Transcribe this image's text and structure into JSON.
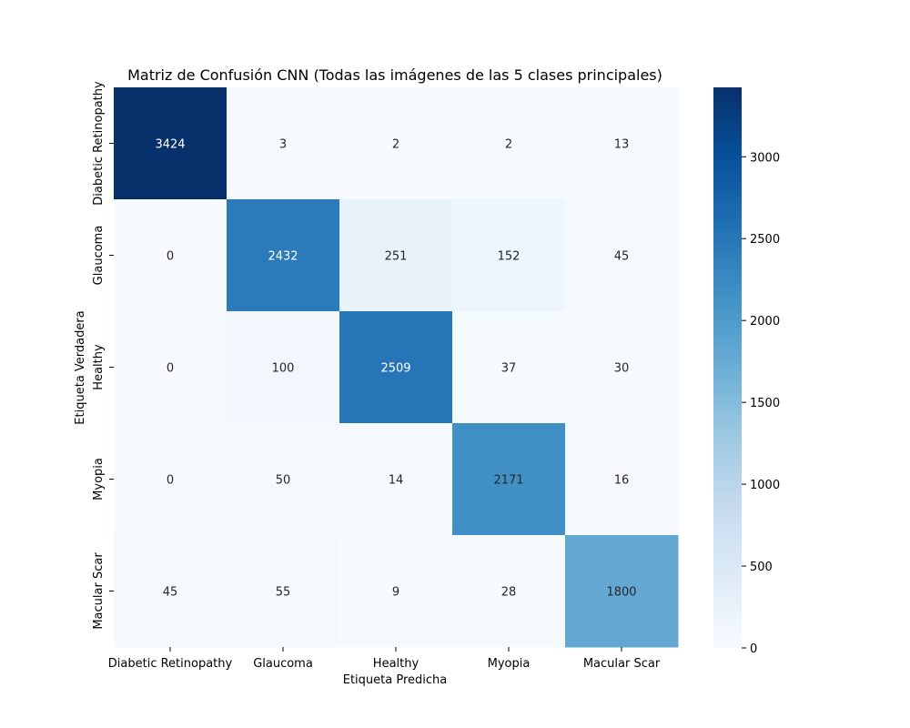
{
  "chart_data": {
    "type": "heatmap",
    "title": "Matriz de Confusión CNN (Todas las imágenes de las 5 clases principales)",
    "xlabel": "Etiqueta Predicha",
    "ylabel": "Etiqueta Verdadera",
    "x_categories": [
      "Diabetic Retinopathy",
      "Glaucoma",
      "Healthy",
      "Myopia",
      "Macular Scar"
    ],
    "y_categories": [
      "Diabetic Retinopathy",
      "Glaucoma",
      "Healthy",
      "Myopia",
      "Macular Scar"
    ],
    "values": [
      [
        3424,
        3,
        2,
        2,
        13
      ],
      [
        0,
        2432,
        251,
        152,
        45
      ],
      [
        0,
        100,
        2509,
        37,
        30
      ],
      [
        0,
        50,
        14,
        2171,
        16
      ],
      [
        45,
        55,
        9,
        28,
        1800
      ]
    ],
    "colorbar": {
      "colormap": "Blues",
      "range": [
        0,
        3424
      ],
      "ticks": [
        0,
        500,
        1000,
        1500,
        2000,
        2500,
        3000
      ]
    }
  }
}
